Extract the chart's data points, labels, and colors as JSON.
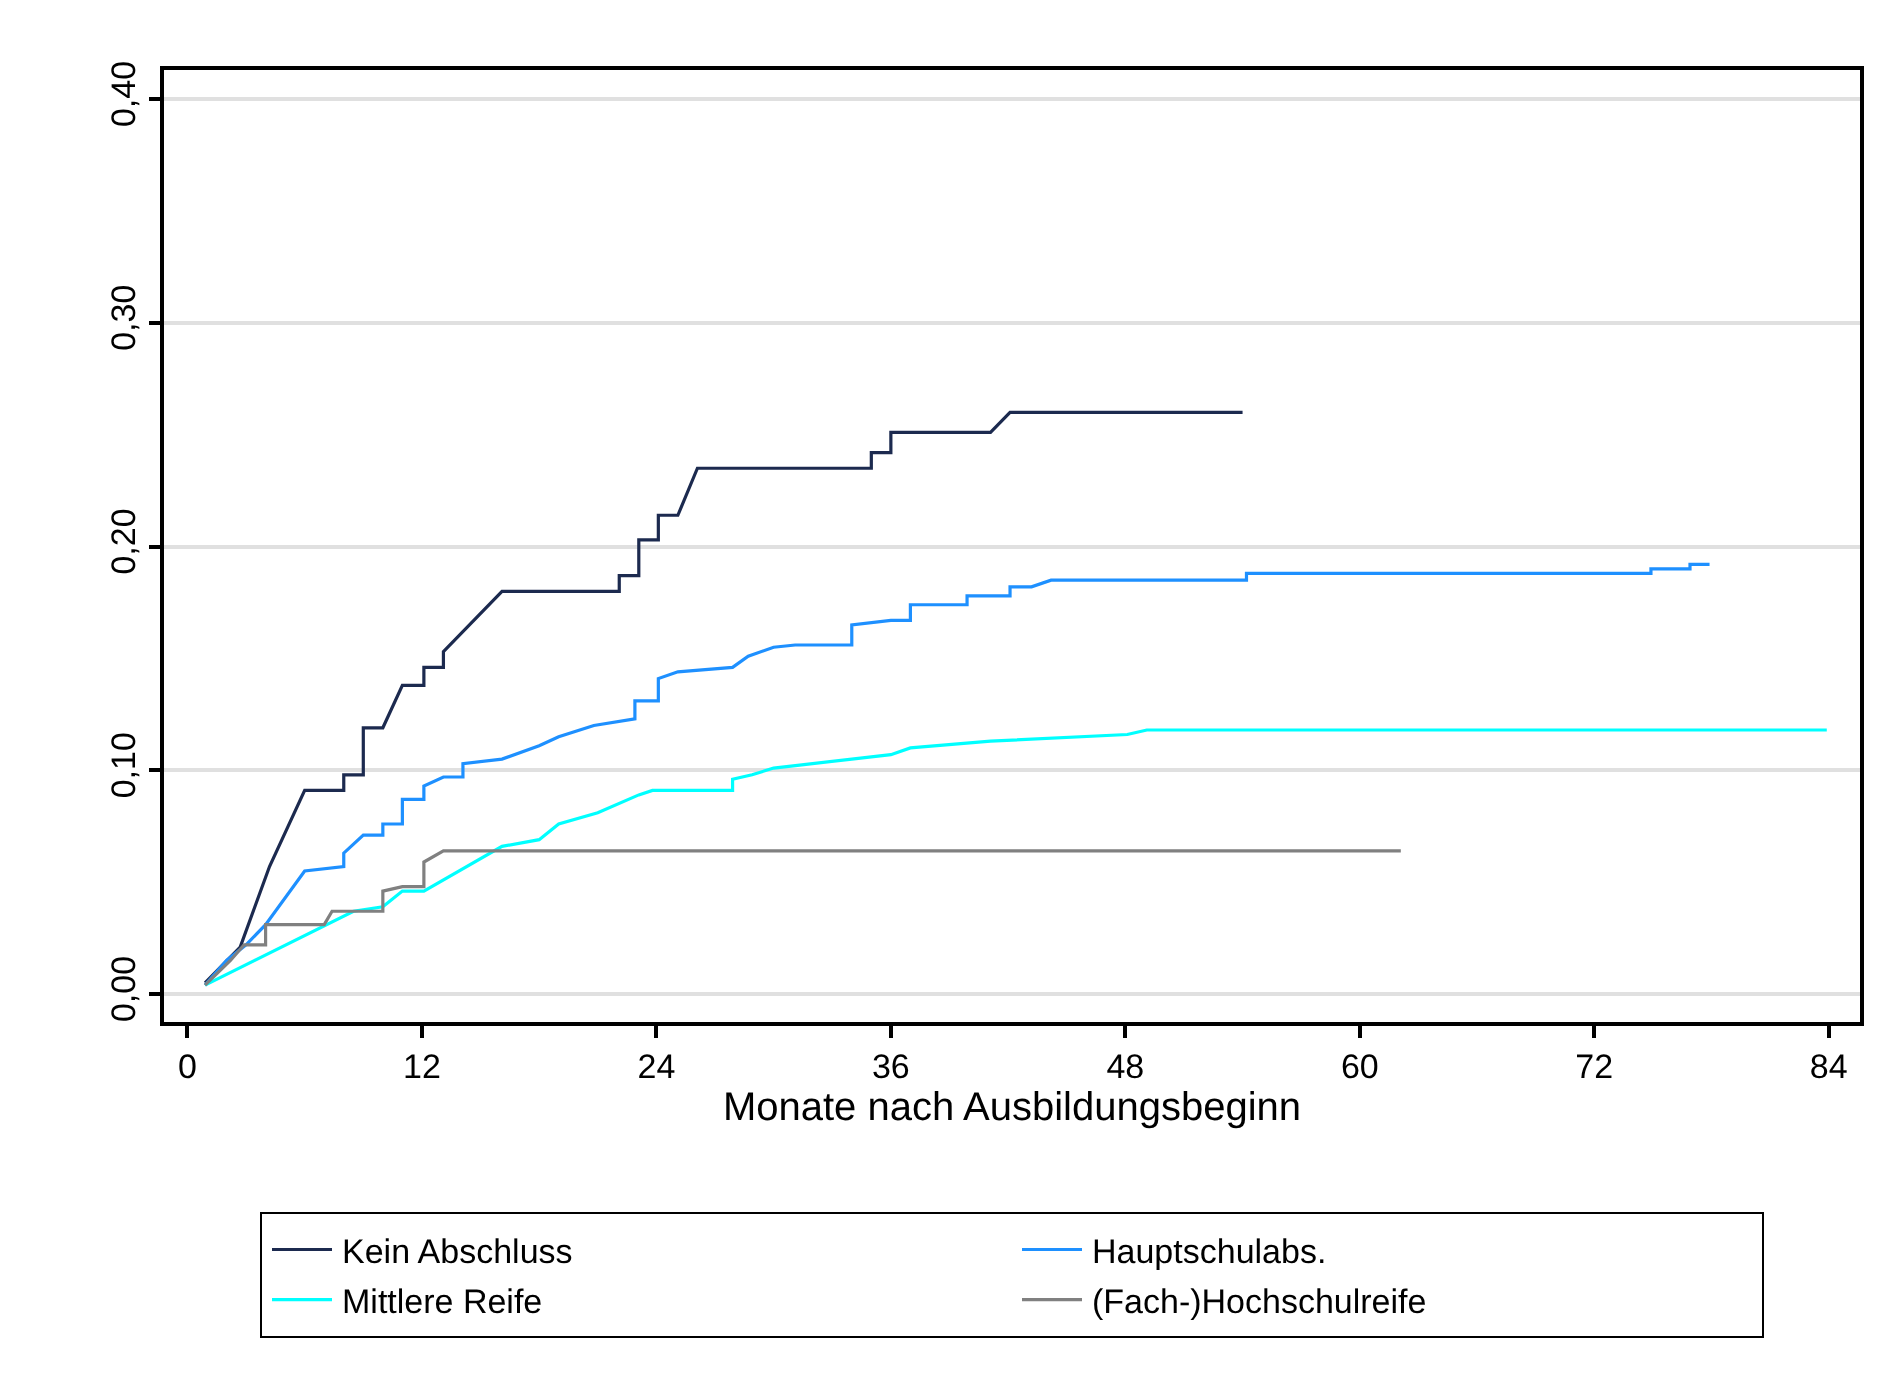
{
  "chart_data": {
    "type": "line",
    "xlabel": "Monate nach Ausbildungsbeginn",
    "xlim": [
      -1.2,
      85.6
    ],
    "xticks": [
      0,
      12,
      24,
      36,
      48,
      60,
      72,
      84
    ],
    "ylim": [
      -0.0125,
      0.413
    ],
    "yticks": [
      {
        "value": 0,
        "label": "0,00"
      },
      {
        "value": 0.1,
        "label": "0,10"
      },
      {
        "value": 0.2,
        "label": "0,20"
      },
      {
        "value": 0.3,
        "label": "0,30"
      },
      {
        "value": 0.4,
        "label": "0,40"
      }
    ],
    "grid": "y",
    "legend": "bottom",
    "line_style": "solid",
    "series": [
      {
        "name": "Kein Abschluss",
        "color": "#1c2a4f",
        "x": [
          0.9,
          2.7,
          4.2,
          6.0,
          8.0,
          8.0,
          9.0,
          9.0,
          10.0,
          11.0,
          12.1,
          12.1,
          13.1,
          13.1,
          16.1,
          22.1,
          22.1,
          23.1,
          23.1,
          24.1,
          24.1,
          25.1,
          26.1,
          35.0,
          35.0,
          36.0,
          36.0,
          41.1,
          42.1,
          54.0
        ],
        "values": [
          0.005,
          0.021,
          0.057,
          0.091,
          0.091,
          0.098,
          0.098,
          0.119,
          0.119,
          0.138,
          0.138,
          0.146,
          0.146,
          0.153,
          0.18,
          0.18,
          0.187,
          0.187,
          0.203,
          0.203,
          0.214,
          0.214,
          0.235,
          0.235,
          0.242,
          0.242,
          0.251,
          0.251,
          0.26,
          0.26
        ]
      },
      {
        "name": "Hauptschulabs.",
        "color": "#1e90ff",
        "x": [
          0.9,
          2.0,
          3.0,
          4.0,
          6.0,
          8.0,
          8.0,
          9.0,
          10.0,
          10.0,
          11.0,
          11.0,
          12.1,
          12.1,
          13.1,
          14.1,
          14.1,
          16.1,
          18.0,
          19.0,
          20.8,
          22.9,
          22.9,
          24.1,
          24.1,
          25.1,
          27.9,
          28.7,
          30.0,
          31.1,
          34.0,
          34.0,
          36.0,
          37.0,
          37.0,
          39.9,
          39.9,
          42.1,
          42.1,
          43.2,
          44.2,
          54.2,
          54.2,
          74.9,
          74.9,
          76.9,
          76.9,
          77.9
        ],
        "values": [
          0.004,
          0.015,
          0.022,
          0.031,
          0.055,
          0.057,
          0.063,
          0.071,
          0.071,
          0.076,
          0.076,
          0.087,
          0.087,
          0.093,
          0.097,
          0.097,
          0.103,
          0.105,
          0.111,
          0.115,
          0.12,
          0.123,
          0.131,
          0.131,
          0.141,
          0.144,
          0.146,
          0.151,
          0.155,
          0.156,
          0.156,
          0.165,
          0.167,
          0.167,
          0.174,
          0.174,
          0.178,
          0.178,
          0.182,
          0.182,
          0.185,
          0.185,
          0.188,
          0.188,
          0.19,
          0.19,
          0.192,
          0.192
        ]
      },
      {
        "name": "Mittlere Reife",
        "color": "#00ffff",
        "x": [
          0.9,
          8.5,
          10.0,
          11.0,
          12.1,
          16.1,
          18.0,
          19.0,
          21.0,
          23.1,
          23.8,
          27.9,
          27.9,
          28.9,
          30.0,
          31.0,
          34.0,
          36.0,
          37.0,
          41.1,
          48.1,
          49.1,
          83.9
        ],
        "values": [
          0.004,
          0.037,
          0.039,
          0.046,
          0.046,
          0.066,
          0.069,
          0.076,
          0.081,
          0.089,
          0.091,
          0.091,
          0.096,
          0.098,
          0.101,
          0.102,
          0.105,
          0.107,
          0.11,
          0.113,
          0.116,
          0.118,
          0.118
        ]
      },
      {
        "name": "(Fach-)Hochschulreife",
        "color": "#808080",
        "x": [
          0.9,
          2.2,
          2.9,
          4.0,
          4.0,
          7.0,
          7.4,
          10.0,
          10.0,
          11.0,
          12.1,
          12.1,
          13.1,
          62.1
        ],
        "values": [
          0.004,
          0.015,
          0.022,
          0.022,
          0.031,
          0.031,
          0.037,
          0.037,
          0.046,
          0.048,
          0.048,
          0.059,
          0.064,
          0.064
        ]
      }
    ]
  }
}
